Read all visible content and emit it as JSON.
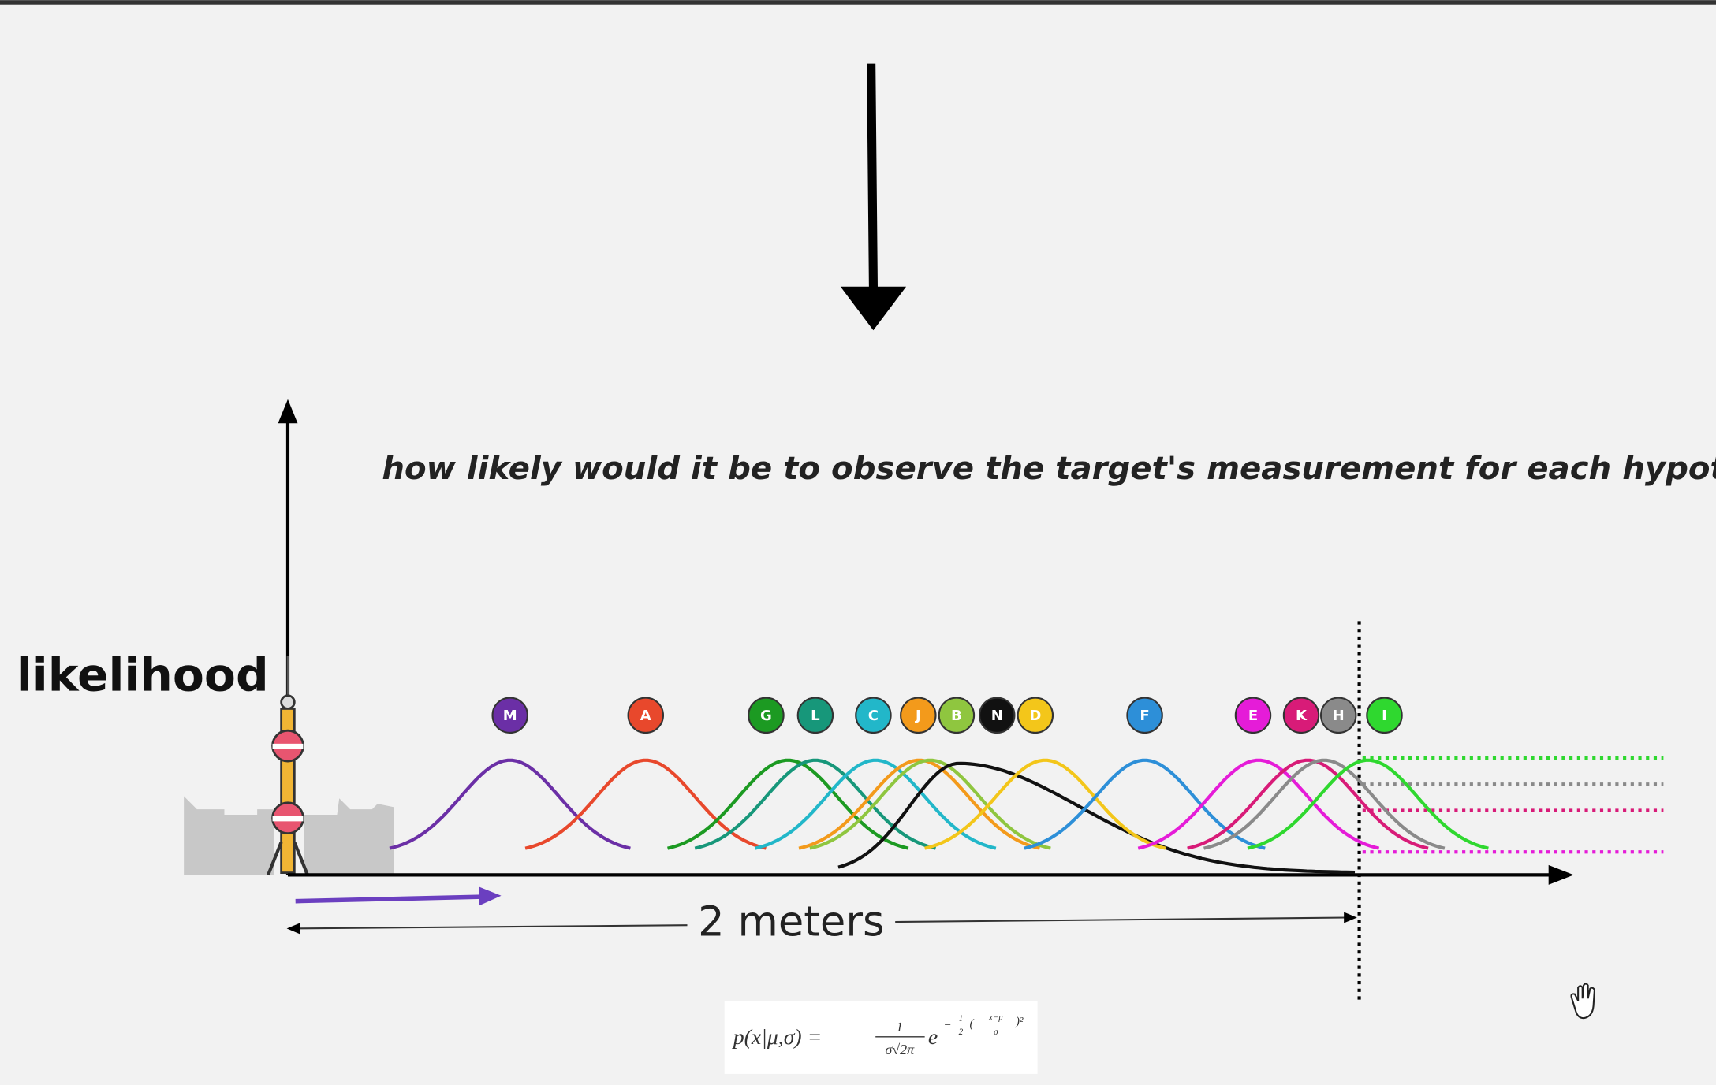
{
  "heading": {
    "y_axis_label": "likelihood",
    "question": "how likely would it be to observe the target's measurement for each hypothesis?"
  },
  "distance_label": "2 meters",
  "formula": {
    "lhs": "p(x|μ,σ) =",
    "numerator": "1",
    "denominator": "σ√2π",
    "base": "e",
    "exp_sign": "−",
    "exp_half_num": "1",
    "exp_half_den": "2",
    "exp_open": "(",
    "exp_num": "x−μ",
    "exp_den": "σ",
    "exp_close": ")²"
  },
  "hypotheses": [
    {
      "label": "M",
      "color": "#6b2fa6"
    },
    {
      "label": "A",
      "color": "#e8482c"
    },
    {
      "label": "G",
      "color": "#1c9a22"
    },
    {
      "label": "L",
      "color": "#17977a"
    },
    {
      "label": "C",
      "color": "#22b7c9"
    },
    {
      "label": "J",
      "color": "#f39a1b"
    },
    {
      "label": "B",
      "color": "#8fc63f"
    },
    {
      "label": "N",
      "color": "#111111"
    },
    {
      "label": "D",
      "color": "#f3c61a"
    },
    {
      "label": "F",
      "color": "#2d8fd8"
    },
    {
      "label": "E",
      "color": "#e51cd8"
    },
    {
      "label": "K",
      "color": "#d81b78"
    },
    {
      "label": "H",
      "color": "#8a8a8a"
    },
    {
      "label": "I",
      "color": "#2fd82f"
    }
  ]
}
